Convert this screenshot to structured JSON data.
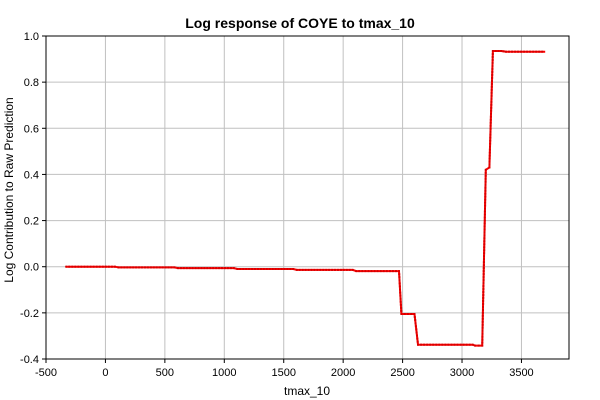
{
  "chart_data": {
    "type": "line",
    "title": "Log response of COYE to tmax_10",
    "xlabel": "tmax_10",
    "ylabel": "Log Contribution to Raw Prediction",
    "xlim": [
      -500,
      3900
    ],
    "ylim": [
      -0.4,
      1.0
    ],
    "x_ticks": [
      -500,
      0,
      500,
      1000,
      1500,
      2000,
      2500,
      3000,
      3500
    ],
    "x_tick_labels": [
      "-500",
      "0",
      "500",
      "1000",
      "1500",
      "2000",
      "2500",
      "3000",
      "3500"
    ],
    "y_ticks": [
      -0.4,
      -0.2,
      0.0,
      0.2,
      0.4,
      0.6,
      0.8,
      1.0
    ],
    "y_tick_labels": [
      "-0.4",
      "-0.2",
      "0.0",
      "0.2",
      "0.4",
      "0.6",
      "0.8",
      "1.0"
    ],
    "grid": true,
    "series": [
      {
        "color": "#ff0000",
        "x": [
          -330,
          80,
          110,
          580,
          610,
          1080,
          1110,
          1580,
          1610,
          2080,
          2110,
          2470,
          2490,
          2600,
          2630,
          3090,
          3110,
          3170,
          3200,
          3230,
          3260,
          3330,
          3370,
          3700
        ],
        "y": [
          0.0,
          0.0,
          -0.003,
          -0.003,
          -0.006,
          -0.006,
          -0.01,
          -0.01,
          -0.014,
          -0.014,
          -0.019,
          -0.019,
          -0.205,
          -0.205,
          -0.338,
          -0.338,
          -0.342,
          -0.342,
          0.42,
          0.43,
          0.935,
          0.935,
          0.932,
          0.932
        ]
      }
    ]
  }
}
